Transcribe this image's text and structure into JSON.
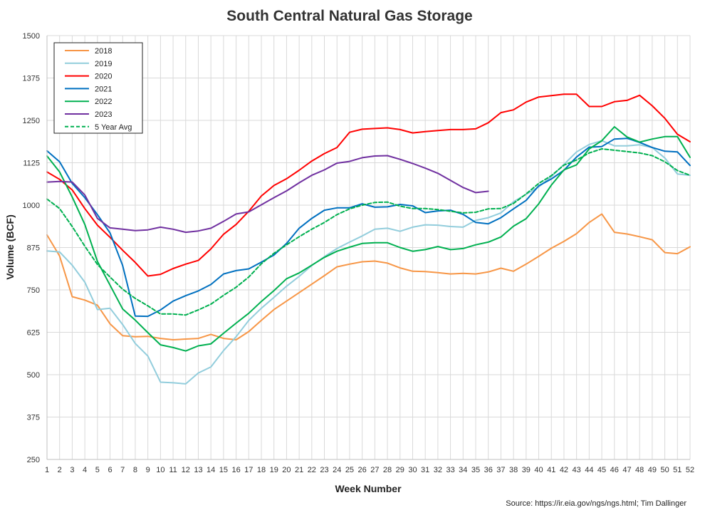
{
  "chart_data": {
    "type": "line",
    "title": "South Central Natural Gas Storage",
    "xlabel": "Week Number",
    "ylabel": "Volume (BCF)",
    "ylim": [
      250,
      1500
    ],
    "xlim": [
      1,
      52
    ],
    "yticks": [
      250,
      375,
      500,
      625,
      750,
      875,
      1000,
      1125,
      1250,
      1375,
      1500
    ],
    "xticks": [
      1,
      2,
      3,
      4,
      5,
      6,
      7,
      8,
      9,
      10,
      11,
      12,
      13,
      14,
      15,
      16,
      17,
      18,
      19,
      20,
      21,
      22,
      23,
      24,
      25,
      26,
      27,
      28,
      29,
      30,
      31,
      32,
      33,
      34,
      35,
      36,
      37,
      38,
      39,
      40,
      41,
      42,
      43,
      44,
      45,
      46,
      47,
      48,
      49,
      50,
      51,
      52
    ],
    "grid": true,
    "legend_position": "top-left",
    "source": "Source: https://ir.eia.gov/ngs/ngs.html; Tim Dallinger",
    "series": [
      {
        "name": "2018",
        "color": "#f79646",
        "dash": false,
        "x": [
          1,
          2,
          3,
          4,
          5,
          6,
          7,
          8,
          9,
          10,
          11,
          12,
          13,
          14,
          15,
          16,
          17,
          18,
          19,
          20,
          21,
          22,
          23,
          24,
          25,
          26,
          27,
          28,
          29,
          30,
          31,
          32,
          33,
          34,
          35,
          36,
          37,
          38,
          39,
          40,
          41,
          42,
          43,
          44,
          45,
          46,
          47,
          48,
          49,
          50,
          51,
          52
        ],
        "values": [
          912,
          850,
          730,
          720,
          705,
          650,
          615,
          612,
          613,
          607,
          603,
          605,
          607,
          619,
          607,
          603,
          627,
          660,
          692,
          717,
          742,
          767,
          792,
          818,
          826,
          833,
          835,
          829,
          815,
          805,
          804,
          801,
          797,
          799,
          797,
          803,
          814,
          805,
          826,
          849,
          873,
          893,
          916,
          949,
          974,
          920,
          915,
          907,
          898,
          860,
          857,
          877
        ]
      },
      {
        "name": "2019",
        "color": "#92cddc",
        "dash": false,
        "x": [
          1,
          2,
          3,
          4,
          5,
          6,
          7,
          8,
          9,
          10,
          11,
          12,
          13,
          14,
          15,
          16,
          17,
          18,
          19,
          20,
          21,
          22,
          23,
          24,
          25,
          26,
          27,
          28,
          29,
          30,
          31,
          32,
          33,
          34,
          35,
          36,
          37,
          38,
          39,
          40,
          41,
          42,
          43,
          44,
          45,
          46,
          47,
          48,
          49,
          50,
          51,
          52
        ],
        "values": [
          865,
          862,
          823,
          773,
          692,
          696,
          648,
          592,
          555,
          478,
          476,
          473,
          505,
          523,
          571,
          612,
          660,
          696,
          728,
          761,
          790,
          822,
          848,
          872,
          891,
          909,
          929,
          932,
          923,
          935,
          942,
          941,
          937,
          935,
          955,
          963,
          977,
          1010,
          1032,
          1054,
          1084,
          1120,
          1157,
          1179,
          1190,
          1175,
          1175,
          1178,
          1170,
          1139,
          1092,
          1088
        ]
      },
      {
        "name": "2020",
        "color": "#ff0000",
        "dash": false,
        "x": [
          1,
          2,
          3,
          4,
          5,
          6,
          7,
          8,
          9,
          10,
          11,
          12,
          13,
          14,
          15,
          16,
          17,
          18,
          19,
          20,
          21,
          22,
          23,
          24,
          25,
          26,
          27,
          28,
          29,
          30,
          31,
          32,
          33,
          34,
          35,
          36,
          37,
          38,
          39,
          40,
          41,
          42,
          43,
          44,
          45,
          46,
          47,
          48,
          49,
          50,
          51,
          52
        ],
        "values": [
          1098,
          1076,
          1045,
          990,
          941,
          905,
          867,
          831,
          791,
          796,
          813,
          826,
          837,
          871,
          914,
          943,
          982,
          1027,
          1058,
          1078,
          1103,
          1130,
          1152,
          1170,
          1215,
          1224,
          1226,
          1228,
          1223,
          1213,
          1217,
          1220,
          1223,
          1223,
          1225,
          1243,
          1273,
          1281,
          1304,
          1319,
          1323,
          1327,
          1327,
          1291,
          1291,
          1305,
          1309,
          1324,
          1293,
          1256,
          1209,
          1187
        ]
      },
      {
        "name": "2021",
        "color": "#0070c0",
        "dash": false,
        "x": [
          1,
          2,
          3,
          4,
          5,
          6,
          7,
          8,
          9,
          10,
          11,
          12,
          13,
          14,
          15,
          16,
          17,
          18,
          19,
          20,
          21,
          22,
          23,
          24,
          25,
          26,
          27,
          28,
          29,
          30,
          31,
          32,
          33,
          34,
          35,
          36,
          37,
          38,
          39,
          40,
          41,
          42,
          43,
          44,
          45,
          46,
          47,
          48,
          49,
          50,
          51,
          52
        ],
        "values": [
          1160,
          1128,
          1064,
          1022,
          972,
          918,
          822,
          673,
          672,
          691,
          717,
          733,
          747,
          766,
          797,
          807,
          812,
          832,
          853,
          887,
          932,
          961,
          985,
          992,
          992,
          1004,
          994,
          995,
          1002,
          998,
          978,
          983,
          985,
          973,
          949,
          945,
          963,
          989,
          1014,
          1057,
          1077,
          1103,
          1142,
          1171,
          1173,
          1195,
          1197,
          1185,
          1170,
          1159,
          1157,
          1117
        ]
      },
      {
        "name": "2022",
        "color": "#00b050",
        "dash": false,
        "x": [
          1,
          2,
          3,
          4,
          5,
          6,
          7,
          8,
          9,
          10,
          11,
          12,
          13,
          14,
          15,
          16,
          17,
          18,
          19,
          20,
          21,
          22,
          23,
          24,
          25,
          26,
          27,
          28,
          29,
          30,
          31,
          32,
          33,
          34,
          35,
          36,
          37,
          38,
          39,
          40,
          41,
          42,
          43,
          44,
          45,
          46,
          47,
          48,
          49,
          50,
          51,
          52
        ],
        "values": [
          1145,
          1098,
          1024,
          943,
          834,
          764,
          694,
          661,
          624,
          588,
          580,
          570,
          585,
          591,
          622,
          652,
          681,
          716,
          748,
          783,
          800,
          823,
          846,
          864,
          876,
          887,
          889,
          889,
          875,
          864,
          869,
          878,
          869,
          872,
          883,
          891,
          906,
          938,
          960,
          1004,
          1059,
          1104,
          1119,
          1166,
          1190,
          1231,
          1201,
          1186,
          1195,
          1202,
          1202,
          1141
        ]
      },
      {
        "name": "2023",
        "color": "#7030a0",
        "dash": false,
        "x": [
          1,
          2,
          3,
          4,
          5,
          6,
          7,
          8,
          9,
          10,
          11,
          12,
          13,
          14,
          15,
          16,
          17,
          18,
          19,
          20,
          21,
          22,
          23,
          24,
          25,
          26,
          27,
          28,
          29,
          30,
          31,
          32,
          33,
          34,
          35,
          36
        ],
        "values": [
          1068,
          1070,
          1068,
          1030,
          961,
          933,
          929,
          925,
          927,
          935,
          929,
          920,
          924,
          932,
          952,
          974,
          980,
          1001,
          1022,
          1042,
          1066,
          1088,
          1104,
          1124,
          1129,
          1140,
          1145,
          1146,
          1135,
          1123,
          1109,
          1094,
          1073,
          1052,
          1037,
          1041
        ]
      },
      {
        "name": "5 Year Avg",
        "color": "#00b050",
        "dash": true,
        "x": [
          1,
          2,
          3,
          4,
          5,
          6,
          7,
          8,
          9,
          10,
          11,
          12,
          13,
          14,
          15,
          16,
          17,
          18,
          19,
          20,
          21,
          22,
          23,
          24,
          25,
          26,
          27,
          28,
          29,
          30,
          31,
          32,
          33,
          34,
          35,
          36,
          37,
          38,
          39,
          40,
          41,
          42,
          43,
          44,
          45,
          46,
          47,
          48,
          49,
          50,
          51,
          52
        ],
        "values": [
          1018,
          990,
          937,
          879,
          825,
          788,
          752,
          725,
          703,
          679,
          679,
          676,
          691,
          708,
          734,
          758,
          788,
          827,
          858,
          883,
          907,
          929,
          949,
          972,
          989,
          1000,
          1008,
          1009,
          997,
          990,
          990,
          987,
          982,
          977,
          979,
          989,
          990,
          1005,
          1033,
          1064,
          1087,
          1118,
          1133,
          1154,
          1166,
          1162,
          1158,
          1154,
          1146,
          1128,
          1102,
          1088
        ]
      }
    ]
  }
}
